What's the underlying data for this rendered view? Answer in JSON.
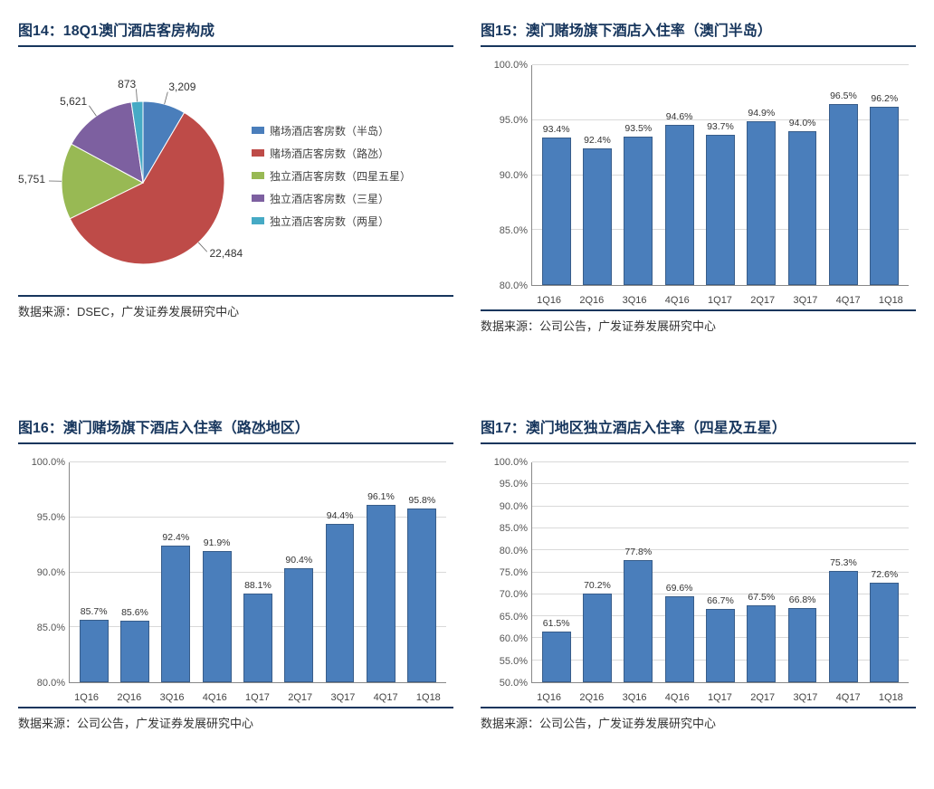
{
  "colors": {
    "title": "#17365d",
    "bar_fill": "#4a7ebb",
    "bar_border": "#385d8a",
    "grid": "#d9d9d9",
    "axis": "#888888"
  },
  "panels": {
    "p14": {
      "title": "图14：18Q1澳门酒店客房构成",
      "source": "数据来源：DSEC，广发证券发展研究中心",
      "type": "pie",
      "slices": [
        {
          "label": "赌场酒店客房数（半岛）",
          "value": 3209,
          "color": "#4a7ebb"
        },
        {
          "label": "赌场酒店客房数（路氹）",
          "value": 22484,
          "color": "#be4b48"
        },
        {
          "label": "独立酒店客房数（四星五星）",
          "value": 5751,
          "color": "#98b954"
        },
        {
          "label": "独立酒店客房数（三星）",
          "value": 5621,
          "color": "#7d60a0"
        },
        {
          "label": "独立酒店客房数（两星）",
          "value": 873,
          "color": "#46aac5"
        }
      ],
      "label_fontsize": 12
    },
    "p15": {
      "title": "图15：澳门赌场旗下酒店入住率（澳门半岛）",
      "source": "数据来源：公司公告，广发证券发展研究中心",
      "type": "bar",
      "ylim": [
        80,
        100
      ],
      "ytick_step": 5,
      "bar_color": "#4a7ebb",
      "bar_border": "#385d8a",
      "bar_width": 0.7,
      "categories": [
        "1Q16",
        "2Q16",
        "3Q16",
        "4Q16",
        "1Q17",
        "2Q17",
        "3Q17",
        "4Q17",
        "1Q18"
      ],
      "values": [
        93.4,
        92.4,
        93.5,
        94.6,
        93.7,
        94.9,
        94.0,
        96.5,
        96.2
      ],
      "value_fmt": "%"
    },
    "p16": {
      "title": "图16：澳门赌场旗下酒店入住率（路氹地区）",
      "source": "数据来源：公司公告，广发证券发展研究中心",
      "type": "bar",
      "ylim": [
        80,
        100
      ],
      "ytick_step": 5,
      "bar_color": "#4a7ebb",
      "bar_border": "#385d8a",
      "bar_width": 0.7,
      "categories": [
        "1Q16",
        "2Q16",
        "3Q16",
        "4Q16",
        "1Q17",
        "2Q17",
        "3Q17",
        "4Q17",
        "1Q18"
      ],
      "values": [
        85.7,
        85.6,
        92.4,
        91.9,
        88.1,
        90.4,
        94.4,
        96.1,
        95.8
      ],
      "value_fmt": "%"
    },
    "p17": {
      "title": "图17：澳门地区独立酒店入住率（四星及五星）",
      "source": "数据来源：公司公告，广发证券发展研究中心",
      "type": "bar",
      "ylim": [
        50,
        100
      ],
      "ytick_step": 5,
      "bar_color": "#4a7ebb",
      "bar_border": "#385d8a",
      "bar_width": 0.7,
      "categories": [
        "1Q16",
        "2Q16",
        "3Q16",
        "4Q16",
        "1Q17",
        "2Q17",
        "3Q17",
        "4Q17",
        "1Q18"
      ],
      "values": [
        61.5,
        70.2,
        77.8,
        69.6,
        66.7,
        67.5,
        66.8,
        75.3,
        72.6
      ],
      "value_fmt": "%"
    }
  }
}
